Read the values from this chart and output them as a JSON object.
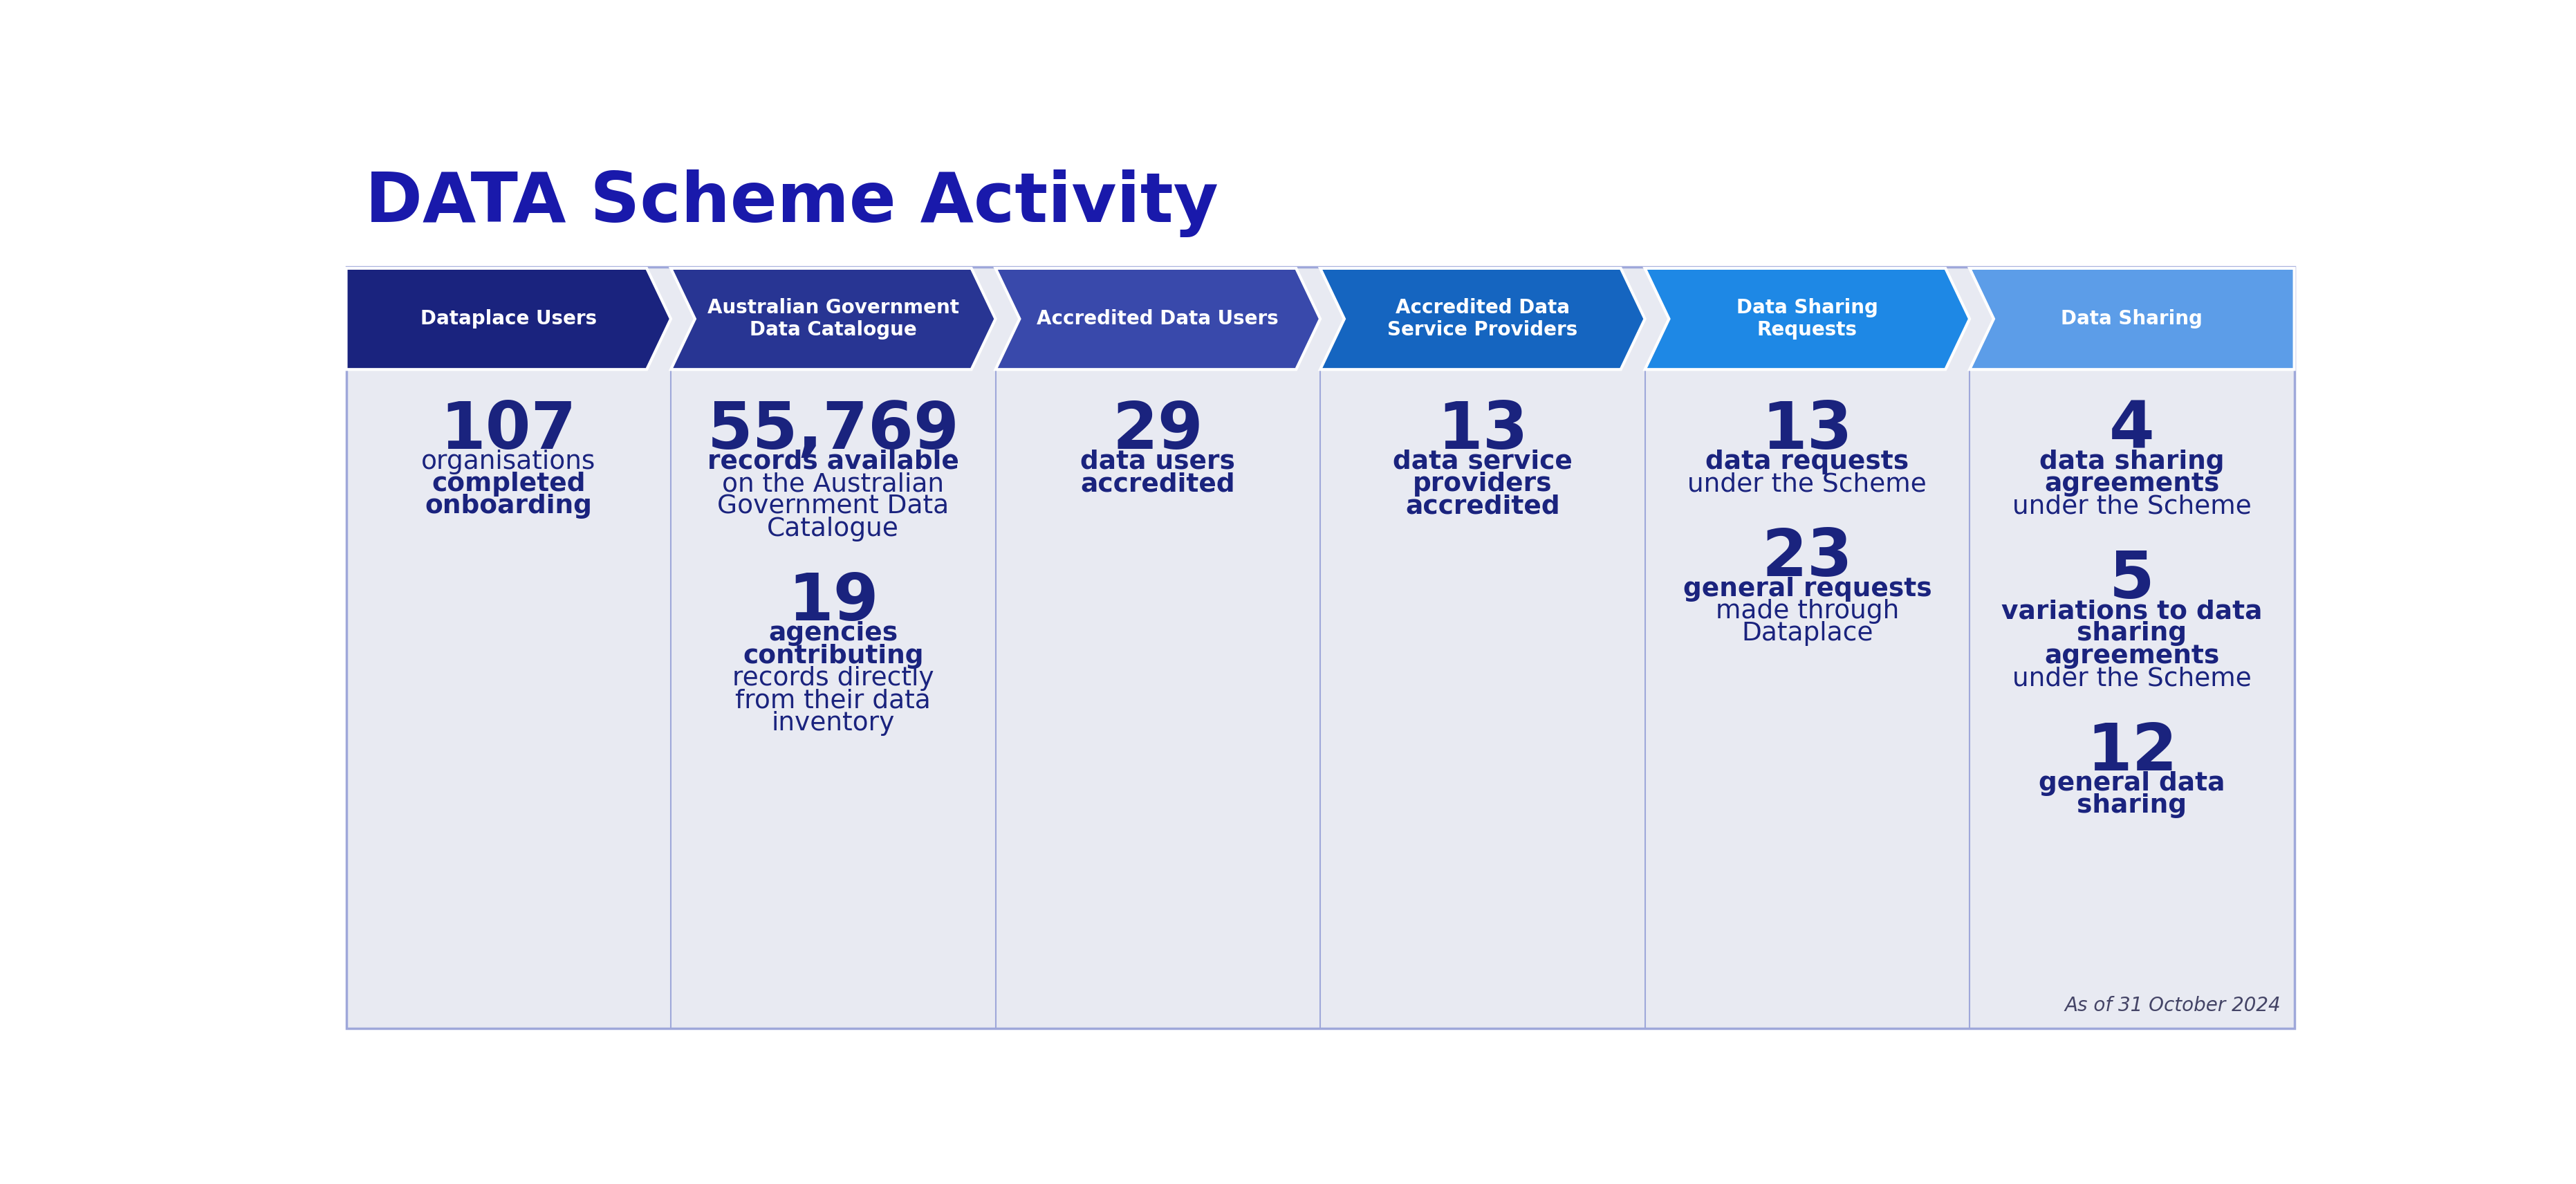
{
  "title": "DATA Scheme Activity",
  "title_color": "#1919ab",
  "title_fontsize": 72,
  "bg_color": "#ffffff",
  "panel_bg": "#e8eaf2",
  "chevron_colors": [
    "#1a237e",
    "#283593",
    "#3949ab",
    "#1565c0",
    "#1e88e5",
    "#5c9de8"
  ],
  "chevron_labels": [
    "Dataplace Users",
    "Australian Government\nData Catalogue",
    "Accredited Data Users",
    "Accredited Data\nService Providers",
    "Data Sharing\nRequests",
    "Data Sharing"
  ],
  "columns": [
    {
      "blocks": [
        {
          "number": "107",
          "lines": [
            {
              "text": "organisations",
              "bold": false
            },
            {
              "text": "completed",
              "bold": true
            },
            {
              "text": "onboarding",
              "bold": true
            }
          ]
        }
      ]
    },
    {
      "blocks": [
        {
          "number": "55,769",
          "lines": [
            {
              "text": "records available",
              "bold": true
            },
            {
              "text": "on the Australian",
              "bold": false
            },
            {
              "text": "Government Data",
              "bold": false
            },
            {
              "text": "Catalogue",
              "bold": false
            }
          ]
        },
        {
          "number": "19",
          "lines": [
            {
              "text": "agencies",
              "bold": true
            },
            {
              "text": "contributing",
              "bold": true
            },
            {
              "text": "records directly",
              "bold": false
            },
            {
              "text": "from their data",
              "bold": false
            },
            {
              "text": "inventory",
              "bold": false
            }
          ]
        }
      ]
    },
    {
      "blocks": [
        {
          "number": "29",
          "lines": [
            {
              "text": "data users",
              "bold": true
            },
            {
              "text": "accredited",
              "bold": true
            }
          ]
        }
      ]
    },
    {
      "blocks": [
        {
          "number": "13",
          "lines": [
            {
              "text": "data service",
              "bold": true
            },
            {
              "text": "providers",
              "bold": true
            },
            {
              "text": "accredited",
              "bold": true
            }
          ]
        }
      ]
    },
    {
      "blocks": [
        {
          "number": "13",
          "lines": [
            {
              "text": "data requests",
              "bold": true
            },
            {
              "text": "under the Scheme",
              "bold": false
            }
          ]
        },
        {
          "number": "23",
          "lines": [
            {
              "text": "general requests",
              "bold": true
            },
            {
              "text": "made through",
              "bold": false
            },
            {
              "text": "Dataplace",
              "bold": false
            }
          ]
        }
      ]
    },
    {
      "blocks": [
        {
          "number": "4",
          "lines": [
            {
              "text": "data sharing",
              "bold": true
            },
            {
              "text": "agreements",
              "bold": true
            },
            {
              "text": "under the Scheme",
              "bold": false
            }
          ]
        },
        {
          "number": "5",
          "lines": [
            {
              "text": "variations to data",
              "bold": true
            },
            {
              "text": "sharing",
              "bold": true
            },
            {
              "text": "agreements",
              "bold": true
            },
            {
              "text": "under the Scheme",
              "bold": false
            }
          ]
        },
        {
          "number": "12",
          "lines": [
            {
              "text": "general data",
              "bold": true
            },
            {
              "text": "sharing",
              "bold": true
            }
          ]
        }
      ]
    }
  ],
  "footer_text": "As of 31 October 2024",
  "number_color": "#1a237e",
  "bold_color": "#1a237e",
  "regular_color": "#1a237e",
  "border_color": "#9fa8da"
}
